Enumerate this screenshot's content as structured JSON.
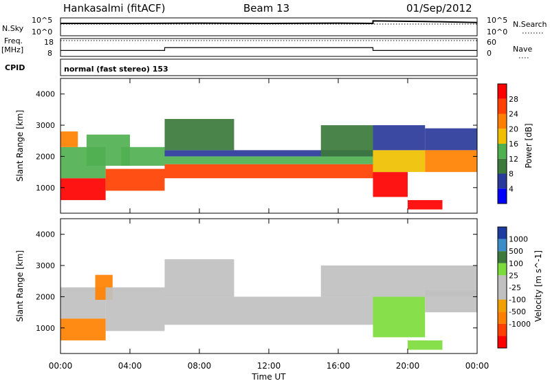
{
  "header": {
    "station": "Hankasalmi (fitACF)",
    "beam": "Beam 13",
    "date": "01/Sep/2012"
  },
  "side_labels": {
    "nsky": "N.Sky",
    "freq_line1": "Freq.",
    "freq_line2": "[MHz]",
    "cpid": "CPID",
    "nsearch": "N.Search",
    "nave": "Nave"
  },
  "mode_text": "normal (fast stereo) 153",
  "colors": {
    "power": [
      "#0000ff",
      "#2a3a9a",
      "#3c7a3c",
      "#50b050",
      "#f0c000",
      "#ff8000",
      "#ff4000",
      "#ff0000"
    ],
    "velocity": [
      "#1e3ca0",
      "#3c8cc8",
      "#3c7a3c",
      "#7cdc3c",
      "#c0c0c0",
      "#c0c0c0",
      "#f0a000",
      "#ff8000",
      "#ff4000",
      "#ff0000"
    ]
  },
  "chart_data": [
    {
      "type": "line",
      "name": "N.Sky / N.Search",
      "y_ticks_left": [
        "10^5",
        "10^0"
      ],
      "y_ticks_right": [
        "10^5",
        "10^0"
      ],
      "x_range_hours": [
        0,
        24
      ],
      "nsky_log10": [
        [
          0,
          4.0
        ],
        [
          4,
          4.0
        ],
        [
          8,
          4.1
        ],
        [
          12,
          4.0
        ],
        [
          16,
          4.1
        ],
        [
          18,
          4.0
        ],
        [
          18,
          4.9
        ],
        [
          21,
          4.7
        ],
        [
          24,
          4.3
        ]
      ],
      "nsearch_log10": [
        [
          0,
          4.0
        ],
        [
          24,
          4.0
        ]
      ]
    },
    {
      "type": "line",
      "name": "Freq / Nave",
      "y_ticks_left": [
        "18",
        "8"
      ],
      "y_ticks_right": [
        "60",
        "0"
      ],
      "freq_mhz": [
        [
          0,
          11.0
        ],
        [
          6,
          11.0
        ],
        [
          6,
          12.9
        ],
        [
          18,
          12.9
        ],
        [
          18,
          11.0
        ],
        [
          24,
          11.0
        ]
      ],
      "nave": [
        [
          0,
          30
        ],
        [
          24,
          30
        ]
      ]
    },
    {
      "type": "heatmap",
      "ylabel": "Slant Range [km]",
      "y_range_km": [
        180,
        4500
      ],
      "y_ticks": [
        "1000",
        "2000",
        "3000",
        "4000"
      ],
      "colorbar_label": "Power [dB]",
      "colorbar_ticks": [
        "4",
        "8",
        "12",
        "16",
        "20",
        "24",
        "28"
      ],
      "colorbar_range": [
        0,
        32
      ],
      "echo_bands": [
        {
          "t0": 0.0,
          "t1": 2.6,
          "r0": 600,
          "r1": 1300,
          "value": 30
        },
        {
          "t0": 0.0,
          "t1": 2.6,
          "r0": 1300,
          "r1": 2300,
          "value": 12
        },
        {
          "t0": 0.0,
          "t1": 1.0,
          "r0": 2300,
          "r1": 2800,
          "value": 20
        },
        {
          "t0": 1.5,
          "t1": 4.0,
          "r0": 1700,
          "r1": 2700,
          "value": 14
        },
        {
          "t0": 2.6,
          "t1": 6.0,
          "r0": 900,
          "r1": 1600,
          "value": 26
        },
        {
          "t0": 3.5,
          "t1": 6.0,
          "r0": 1700,
          "r1": 2300,
          "value": 12
        },
        {
          "t0": 6.0,
          "t1": 18.0,
          "r0": 1300,
          "r1": 1750,
          "value": 24
        },
        {
          "t0": 6.0,
          "t1": 18.0,
          "r0": 1750,
          "r1": 2000,
          "value": 12
        },
        {
          "t0": 6.0,
          "t1": 18.0,
          "r0": 2000,
          "r1": 2200,
          "value": 6
        },
        {
          "t0": 6.0,
          "t1": 10.0,
          "r0": 2200,
          "r1": 3200,
          "value": 10
        },
        {
          "t0": 15.0,
          "t1": 18.0,
          "r0": 2000,
          "r1": 3000,
          "value": 9
        },
        {
          "t0": 18.0,
          "t1": 20.0,
          "r0": 700,
          "r1": 1500,
          "value": 28
        },
        {
          "t0": 18.0,
          "t1": 21.0,
          "r0": 1500,
          "r1": 2200,
          "value": 18
        },
        {
          "t0": 18.0,
          "t1": 21.0,
          "r0": 2200,
          "r1": 3000,
          "value": 7
        },
        {
          "t0": 21.0,
          "t1": 24.0,
          "r0": 1500,
          "r1": 2200,
          "value": 22
        },
        {
          "t0": 20.0,
          "t1": 22.0,
          "r0": 300,
          "r1": 600,
          "value": 30
        },
        {
          "t0": 21.0,
          "t1": 24.0,
          "r0": 2200,
          "r1": 2900,
          "value": 7
        }
      ]
    },
    {
      "type": "heatmap",
      "xlabel": "Time UT",
      "ylabel": "Slant Range [km]",
      "y_range_km": [
        180,
        4500
      ],
      "y_ticks": [
        "1000",
        "2000",
        "3000",
        "4000"
      ],
      "x_ticks": [
        "00:00",
        "04:00",
        "08:00",
        "12:00",
        "16:00",
        "20:00",
        "00:00"
      ],
      "colorbar_label": "Velocity [m s^-1]",
      "colorbar_ticks": [
        "1000",
        "500",
        "100",
        "25",
        "-25",
        "-100",
        "-500",
        "-1000"
      ],
      "colorbar_range": [
        -1000,
        1000
      ],
      "echo_bands": [
        {
          "t0": 0.0,
          "t1": 2.6,
          "r0": 600,
          "r1": 1300,
          "value": -300
        },
        {
          "t0": 0.0,
          "t1": 2.6,
          "r0": 1300,
          "r1": 2300,
          "value": 0
        },
        {
          "t0": 2.0,
          "t1": 3.0,
          "r0": 1900,
          "r1": 2700,
          "value": -300
        },
        {
          "t0": 2.6,
          "t1": 6.0,
          "r0": 900,
          "r1": 2300,
          "value": 0
        },
        {
          "t0": 6.0,
          "t1": 18.0,
          "r0": 1100,
          "r1": 2000,
          "value": 0
        },
        {
          "t0": 6.0,
          "t1": 10.0,
          "r0": 2000,
          "r1": 3200,
          "value": 0
        },
        {
          "t0": 15.0,
          "t1": 18.0,
          "r0": 2000,
          "r1": 3000,
          "value": 0
        },
        {
          "t0": 18.0,
          "t1": 21.0,
          "r0": 700,
          "r1": 2000,
          "value": 60
        },
        {
          "t0": 18.0,
          "t1": 24.0,
          "r0": 2000,
          "r1": 3000,
          "value": 0
        },
        {
          "t0": 21.0,
          "t1": 24.0,
          "r0": 1500,
          "r1": 2200,
          "value": 0
        },
        {
          "t0": 20.0,
          "t1": 22.0,
          "r0": 300,
          "r1": 600,
          "value": 60
        }
      ]
    }
  ]
}
